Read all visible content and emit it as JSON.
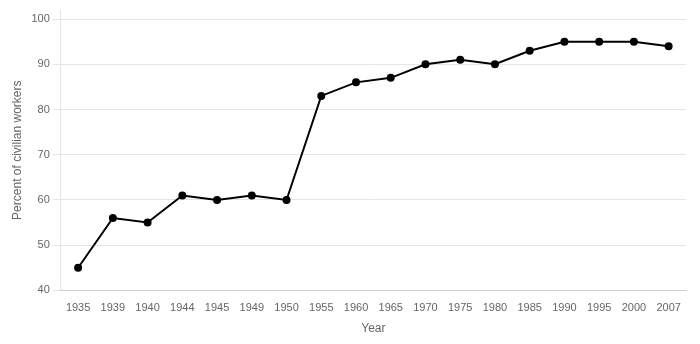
{
  "chart_data": {
    "type": "line",
    "categories": [
      "1935",
      "1939",
      "1940",
      "1944",
      "1945",
      "1949",
      "1950",
      "1955",
      "1960",
      "1965",
      "1970",
      "1975",
      "1980",
      "1985",
      "1990",
      "1995",
      "2000",
      "2007"
    ],
    "values": [
      45,
      56,
      55,
      61,
      60,
      61,
      60,
      83,
      86,
      87,
      90,
      91,
      90,
      93,
      95,
      95,
      95,
      94
    ],
    "xlabel": "Year",
    "ylabel": "Percent of civilian workers",
    "ylim": [
      40,
      102
    ],
    "yticks": [
      40,
      50,
      60,
      70,
      80,
      90,
      100
    ],
    "color": "#000000",
    "marker": "circle",
    "grid": true
  }
}
